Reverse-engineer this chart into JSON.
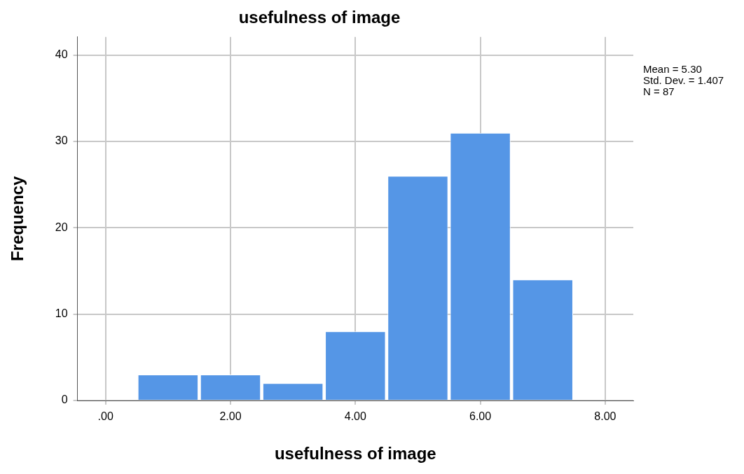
{
  "chart_data": {
    "type": "histogram",
    "title": "usefulness of image",
    "xlabel": "usefulness of image",
    "ylabel": "Frequency",
    "bins": [
      0.5,
      1.5,
      2.5,
      3.5,
      4.5,
      5.5,
      6.5,
      7.5
    ],
    "values": [
      3,
      3,
      2,
      8,
      26,
      31,
      14
    ],
    "color": "#5596e6",
    "xlim": [
      -0.45,
      8.45
    ],
    "xticks": [
      {
        "value": 0,
        "label": ".00"
      },
      {
        "value": 2,
        "label": "2.00"
      },
      {
        "value": 4,
        "label": "4.00"
      },
      {
        "value": 6,
        "label": "6.00"
      },
      {
        "value": 8,
        "label": "8.00"
      }
    ],
    "ylim": [
      0,
      42.1
    ],
    "yticks": [
      0,
      10,
      20,
      30,
      40
    ],
    "grid": true,
    "annotations": [
      "Mean = 5.30",
      "Std. Dev. = 1.407",
      "N = 87"
    ]
  }
}
